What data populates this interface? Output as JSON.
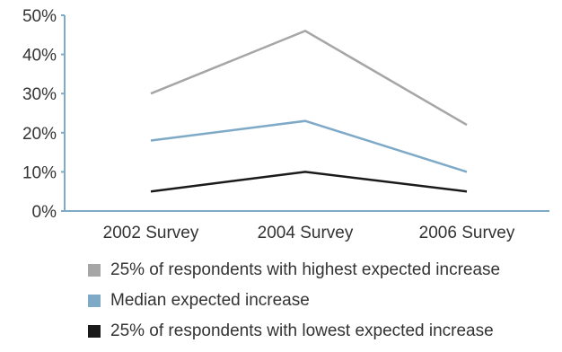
{
  "chart_data": {
    "type": "line",
    "categories": [
      "2002 Survey",
      "2004 Survey",
      "2006 Survey"
    ],
    "series": [
      {
        "name": "25% of respondents with highest expected increase",
        "values": [
          30,
          46,
          22
        ],
        "color": "#a6a6a6"
      },
      {
        "name": "Median expected increase",
        "values": [
          18,
          23,
          10
        ],
        "color": "#7eaac8"
      },
      {
        "name": "25% of respondents with lowest expected increase",
        "values": [
          5,
          10,
          5
        ],
        "color": "#1a1a1a"
      }
    ],
    "yticks": [
      "0%",
      "10%",
      "20%",
      "30%",
      "40%",
      "50%"
    ],
    "ylim": [
      0,
      50
    ],
    "axis_color": "#7eaac8",
    "grid": false,
    "legend_position": "bottom"
  }
}
